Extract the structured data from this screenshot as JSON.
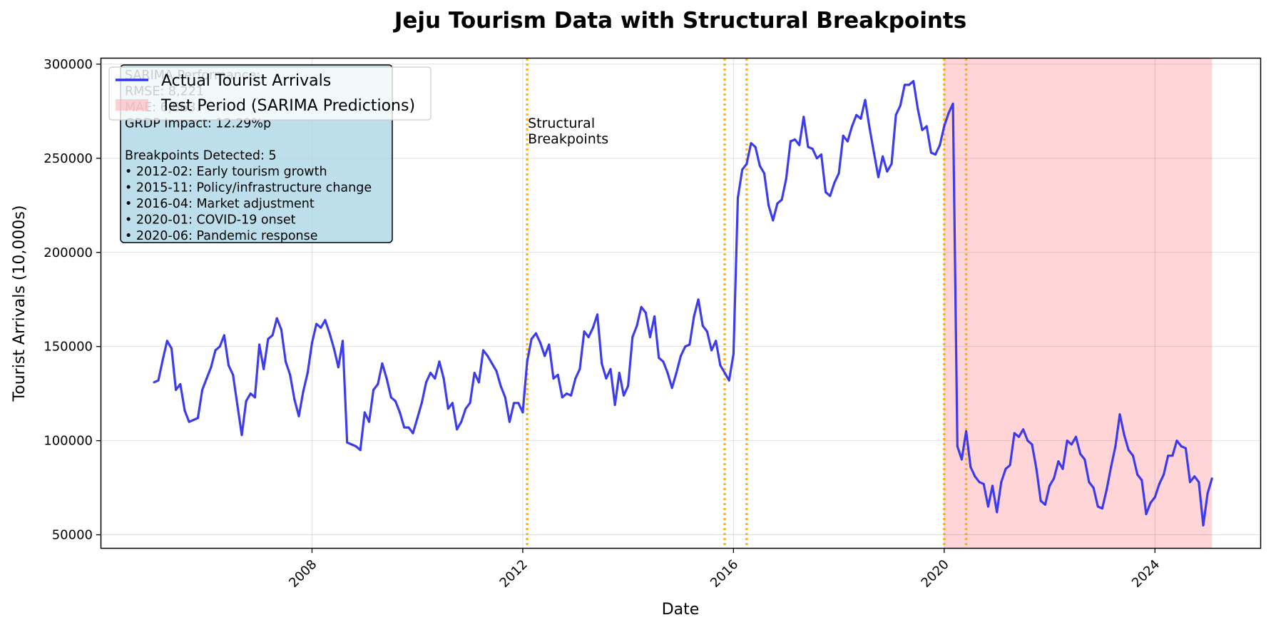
{
  "chart_data": {
    "type": "line",
    "title": "Jeju Tourism Data with Structural Breakpoints",
    "xlabel": "Date",
    "ylabel": "Tourist Arrivals (10,000s)",
    "xlim": [
      "2004-01",
      "2026-01"
    ],
    "ylim": [
      43000,
      303000
    ],
    "grid": true,
    "x_ticks": [
      {
        "date": "2008-01",
        "label": "2008"
      },
      {
        "date": "2012-01",
        "label": "2012"
      },
      {
        "date": "2016-01",
        "label": "2016"
      },
      {
        "date": "2020-01",
        "label": "2020"
      },
      {
        "date": "2024-01",
        "label": "2024"
      }
    ],
    "y_ticks": [
      {
        "value": 50000,
        "label": "50000"
      },
      {
        "value": 100000,
        "label": "100000"
      },
      {
        "value": 150000,
        "label": "150000"
      },
      {
        "value": 200000,
        "label": "200000"
      },
      {
        "value": 250000,
        "label": "250000"
      },
      {
        "value": 300000,
        "label": "300000"
      }
    ],
    "series": [
      {
        "name": "Actual Tourist Arrivals",
        "color": "#3333ee",
        "points": [
          [
            "2005-01",
            131000
          ],
          [
            "2005-02",
            132000
          ],
          [
            "2005-03",
            143000
          ],
          [
            "2005-04",
            153000
          ],
          [
            "2005-05",
            149000
          ],
          [
            "2005-06",
            127000
          ],
          [
            "2005-07",
            130000
          ],
          [
            "2005-08",
            116000
          ],
          [
            "2005-09",
            110000
          ],
          [
            "2005-10",
            111000
          ],
          [
            "2005-11",
            112000
          ],
          [
            "2005-12",
            127000
          ],
          [
            "2006-01",
            133000
          ],
          [
            "2006-02",
            139000
          ],
          [
            "2006-03",
            148000
          ],
          [
            "2006-04",
            150000
          ],
          [
            "2006-05",
            156000
          ],
          [
            "2006-06",
            140000
          ],
          [
            "2006-07",
            135000
          ],
          [
            "2006-08",
            119000
          ],
          [
            "2006-09",
            103000
          ],
          [
            "2006-10",
            121000
          ],
          [
            "2006-11",
            125000
          ],
          [
            "2006-12",
            123000
          ],
          [
            "2007-01",
            151000
          ],
          [
            "2007-02",
            138000
          ],
          [
            "2007-03",
            154000
          ],
          [
            "2007-04",
            156000
          ],
          [
            "2007-05",
            165000
          ],
          [
            "2007-06",
            159000
          ],
          [
            "2007-07",
            142000
          ],
          [
            "2007-08",
            135000
          ],
          [
            "2007-09",
            122000
          ],
          [
            "2007-10",
            113000
          ],
          [
            "2007-11",
            126000
          ],
          [
            "2007-12",
            136000
          ],
          [
            "2008-01",
            152000
          ],
          [
            "2008-02",
            162000
          ],
          [
            "2008-03",
            160000
          ],
          [
            "2008-04",
            164000
          ],
          [
            "2008-05",
            157000
          ],
          [
            "2008-06",
            149000
          ],
          [
            "2008-07",
            139000
          ],
          [
            "2008-08",
            153000
          ],
          [
            "2008-09",
            99000
          ],
          [
            "2008-10",
            98000
          ],
          [
            "2008-11",
            97000
          ],
          [
            "2008-12",
            95000
          ],
          [
            "2009-01",
            115000
          ],
          [
            "2009-02",
            110000
          ],
          [
            "2009-03",
            127000
          ],
          [
            "2009-04",
            130000
          ],
          [
            "2009-05",
            141000
          ],
          [
            "2009-06",
            133000
          ],
          [
            "2009-07",
            123000
          ],
          [
            "2009-08",
            121000
          ],
          [
            "2009-09",
            115000
          ],
          [
            "2009-10",
            107000
          ],
          [
            "2009-11",
            107000
          ],
          [
            "2009-12",
            104000
          ],
          [
            "2010-01",
            112000
          ],
          [
            "2010-02",
            120000
          ],
          [
            "2010-03",
            131000
          ],
          [
            "2010-04",
            136000
          ],
          [
            "2010-05",
            133000
          ],
          [
            "2010-06",
            142000
          ],
          [
            "2010-07",
            133000
          ],
          [
            "2010-08",
            117000
          ],
          [
            "2010-09",
            120000
          ],
          [
            "2010-10",
            106000
          ],
          [
            "2010-11",
            110000
          ],
          [
            "2010-12",
            117000
          ],
          [
            "2011-01",
            120000
          ],
          [
            "2011-02",
            136000
          ],
          [
            "2011-03",
            131000
          ],
          [
            "2011-04",
            148000
          ],
          [
            "2011-05",
            145000
          ],
          [
            "2011-06",
            141000
          ],
          [
            "2011-07",
            137000
          ],
          [
            "2011-08",
            129000
          ],
          [
            "2011-09",
            123000
          ],
          [
            "2011-10",
            110000
          ],
          [
            "2011-11",
            120000
          ],
          [
            "2011-12",
            120000
          ],
          [
            "2012-01",
            115000
          ],
          [
            "2012-02",
            142000
          ],
          [
            "2012-03",
            154000
          ],
          [
            "2012-04",
            157000
          ],
          [
            "2012-05",
            152000
          ],
          [
            "2012-06",
            145000
          ],
          [
            "2012-07",
            151000
          ],
          [
            "2012-08",
            133000
          ],
          [
            "2012-09",
            135000
          ],
          [
            "2012-10",
            123000
          ],
          [
            "2012-11",
            125000
          ],
          [
            "2012-12",
            124000
          ],
          [
            "2013-01",
            133000
          ],
          [
            "2013-02",
            138000
          ],
          [
            "2013-03",
            158000
          ],
          [
            "2013-04",
            155000
          ],
          [
            "2013-05",
            160000
          ],
          [
            "2013-06",
            167000
          ],
          [
            "2013-07",
            141000
          ],
          [
            "2013-08",
            133000
          ],
          [
            "2013-09",
            138000
          ],
          [
            "2013-10",
            119000
          ],
          [
            "2013-11",
            136000
          ],
          [
            "2013-12",
            124000
          ],
          [
            "2014-01",
            129000
          ],
          [
            "2014-02",
            155000
          ],
          [
            "2014-03",
            161000
          ],
          [
            "2014-04",
            171000
          ],
          [
            "2014-05",
            168000
          ],
          [
            "2014-06",
            155000
          ],
          [
            "2014-07",
            166000
          ],
          [
            "2014-08",
            144000
          ],
          [
            "2014-09",
            142000
          ],
          [
            "2014-10",
            136000
          ],
          [
            "2014-11",
            128000
          ],
          [
            "2014-12",
            136000
          ],
          [
            "2015-01",
            145000
          ],
          [
            "2015-02",
            150000
          ],
          [
            "2015-03",
            151000
          ],
          [
            "2015-04",
            166000
          ],
          [
            "2015-05",
            175000
          ],
          [
            "2015-06",
            161000
          ],
          [
            "2015-07",
            158000
          ],
          [
            "2015-08",
            148000
          ],
          [
            "2015-09",
            153000
          ],
          [
            "2015-10",
            140000
          ],
          [
            "2015-11",
            136000
          ],
          [
            "2015-12",
            132000
          ],
          [
            "2016-01",
            146000
          ],
          [
            "2016-02",
            229000
          ],
          [
            "2016-03",
            244000
          ],
          [
            "2016-04",
            247000
          ],
          [
            "2016-05",
            258000
          ],
          [
            "2016-06",
            256000
          ],
          [
            "2016-07",
            246000
          ],
          [
            "2016-08",
            242000
          ],
          [
            "2016-09",
            225000
          ],
          [
            "2016-10",
            217000
          ],
          [
            "2016-11",
            226000
          ],
          [
            "2016-12",
            228000
          ],
          [
            "2017-01",
            239000
          ],
          [
            "2017-02",
            259000
          ],
          [
            "2017-03",
            260000
          ],
          [
            "2017-04",
            257000
          ],
          [
            "2017-05",
            272000
          ],
          [
            "2017-06",
            256000
          ],
          [
            "2017-07",
            255000
          ],
          [
            "2017-08",
            250000
          ],
          [
            "2017-09",
            252000
          ],
          [
            "2017-10",
            232000
          ],
          [
            "2017-11",
            230000
          ],
          [
            "2017-12",
            237000
          ],
          [
            "2018-01",
            242000
          ],
          [
            "2018-02",
            262000
          ],
          [
            "2018-03",
            259000
          ],
          [
            "2018-04",
            267000
          ],
          [
            "2018-05",
            273000
          ],
          [
            "2018-06",
            271000
          ],
          [
            "2018-07",
            281000
          ],
          [
            "2018-08",
            266000
          ],
          [
            "2018-09",
            253000
          ],
          [
            "2018-10",
            240000
          ],
          [
            "2018-11",
            251000
          ],
          [
            "2018-12",
            243000
          ],
          [
            "2019-01",
            247000
          ],
          [
            "2019-02",
            273000
          ],
          [
            "2019-03",
            278000
          ],
          [
            "2019-04",
            289000
          ],
          [
            "2019-05",
            289000
          ],
          [
            "2019-06",
            291000
          ],
          [
            "2019-07",
            276000
          ],
          [
            "2019-08",
            265000
          ],
          [
            "2019-09",
            267000
          ],
          [
            "2019-10",
            253000
          ],
          [
            "2019-11",
            252000
          ],
          [
            "2019-12",
            257000
          ],
          [
            "2020-01",
            267000
          ],
          [
            "2020-02",
            274000
          ],
          [
            "2020-03",
            279000
          ],
          [
            "2020-04",
            97000
          ],
          [
            "2020-05",
            90000
          ],
          [
            "2020-06",
            105000
          ],
          [
            "2020-07",
            86000
          ],
          [
            "2020-08",
            81000
          ],
          [
            "2020-09",
            78000
          ],
          [
            "2020-10",
            77000
          ],
          [
            "2020-11",
            65000
          ],
          [
            "2020-12",
            76000
          ],
          [
            "2021-01",
            62000
          ],
          [
            "2021-02",
            78000
          ],
          [
            "2021-03",
            85000
          ],
          [
            "2021-04",
            87000
          ],
          [
            "2021-05",
            104000
          ],
          [
            "2021-06",
            102000
          ],
          [
            "2021-07",
            106000
          ],
          [
            "2021-08",
            100000
          ],
          [
            "2021-09",
            98000
          ],
          [
            "2021-10",
            85000
          ],
          [
            "2021-11",
            68000
          ],
          [
            "2021-12",
            66000
          ],
          [
            "2022-01",
            76000
          ],
          [
            "2022-02",
            80000
          ],
          [
            "2022-03",
            89000
          ],
          [
            "2022-04",
            85000
          ],
          [
            "2022-05",
            100000
          ],
          [
            "2022-06",
            98000
          ],
          [
            "2022-07",
            102000
          ],
          [
            "2022-08",
            93000
          ],
          [
            "2022-09",
            90000
          ],
          [
            "2022-10",
            78000
          ],
          [
            "2022-11",
            75000
          ],
          [
            "2022-12",
            65000
          ],
          [
            "2023-01",
            64000
          ],
          [
            "2023-02",
            74000
          ],
          [
            "2023-03",
            86000
          ],
          [
            "2023-04",
            97000
          ],
          [
            "2023-05",
            114000
          ],
          [
            "2023-06",
            103000
          ],
          [
            "2023-07",
            95000
          ],
          [
            "2023-08",
            92000
          ],
          [
            "2023-09",
            82000
          ],
          [
            "2023-10",
            79000
          ],
          [
            "2023-11",
            61000
          ],
          [
            "2023-12",
            67000
          ],
          [
            "2024-01",
            70000
          ],
          [
            "2024-02",
            77000
          ],
          [
            "2024-03",
            82000
          ],
          [
            "2024-04",
            92000
          ],
          [
            "2024-05",
            92000
          ],
          [
            "2024-06",
            100000
          ],
          [
            "2024-07",
            97000
          ],
          [
            "2024-08",
            96000
          ],
          [
            "2024-09",
            78000
          ],
          [
            "2024-10",
            81000
          ],
          [
            "2024-11",
            78000
          ],
          [
            "2024-12",
            55000
          ],
          [
            "2025-01",
            72000
          ],
          [
            "2025-02",
            80000
          ]
        ]
      }
    ],
    "test_period": {
      "label": "Test Period (SARIMA Predictions)",
      "start": "2020-01",
      "end": "2025-02",
      "color": "#ffb3b8"
    },
    "breakpoints": {
      "color": "#ffa500",
      "annotation": "Structural\nBreakpoints",
      "dates": [
        "2012-02",
        "2015-11",
        "2016-04",
        "2020-01",
        "2020-06"
      ]
    },
    "legend": {
      "placement": "top-left"
    },
    "info_box": {
      "lines": [
        "SARIMA Performance:",
        "RMSE: 8,221",
        "MAE: 6,863",
        "GRDP Impact: 12.29%p",
        "",
        "Breakpoints Detected: 5",
        "• 2012-02: Early tourism growth",
        "• 2015-11: Policy/infrastructure change",
        "• 2016-04: Market adjustment",
        "• 2020-01: COVID-19 onset",
        "• 2020-06: Pandemic response"
      ]
    }
  }
}
